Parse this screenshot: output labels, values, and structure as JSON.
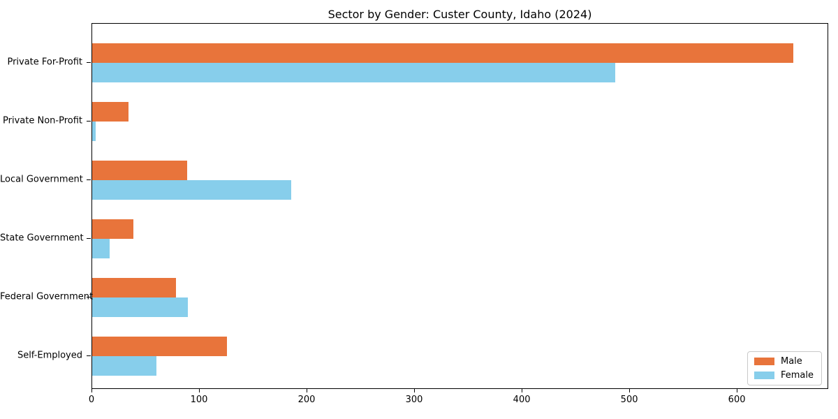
{
  "chart_data": {
    "type": "bar",
    "orientation": "horizontal",
    "title": "Sector by Gender: Custer County, Idaho (2024)",
    "categories": [
      "Private For-Profit",
      "Private Non-Profit",
      "Local Government",
      "State Government",
      "Federal Government",
      "Self-Employed"
    ],
    "series": [
      {
        "name": "Male",
        "color": "#e8743b",
        "values": [
          652,
          34,
          88,
          38,
          78,
          125
        ]
      },
      {
        "name": "Female",
        "color": "#87ceeb",
        "values": [
          486,
          3,
          185,
          16,
          89,
          60
        ]
      }
    ],
    "xlabel": "",
    "ylabel": "",
    "xlim": [
      0,
      685
    ],
    "x_ticks": [
      0,
      100,
      200,
      300,
      400,
      500,
      600
    ],
    "grid": false,
    "legend": {
      "position": "lower right",
      "labels": [
        "Male",
        "Female"
      ]
    },
    "colors": {
      "background": "#ffffff",
      "spine": "#000000",
      "text": "#000000",
      "legend_border": "#c9c9c9"
    }
  }
}
